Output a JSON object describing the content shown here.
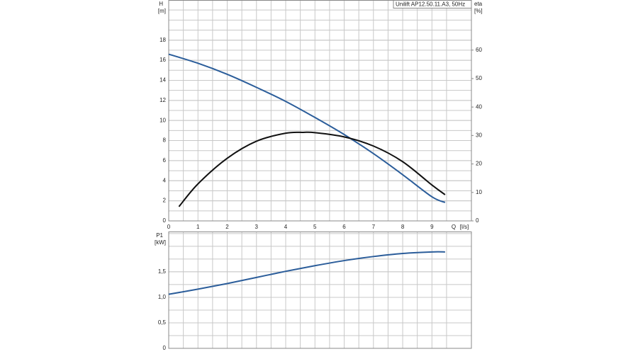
{
  "chart_data": [
    {
      "type": "line",
      "title": "Unilift AP12.50.11.A3, 50Hz",
      "ylabel": "H",
      "yunit": "[m]",
      "y2label": "eta",
      "y2unit": "[%]",
      "xlabel": "Q",
      "xunit": "[l/s]",
      "xlim": [
        0,
        10.35
      ],
      "xticks": [
        0,
        1,
        2,
        3,
        4,
        5,
        6,
        7,
        8,
        9
      ],
      "ylim": [
        0,
        22
      ],
      "yticks": [
        0,
        2,
        4,
        6,
        8,
        10,
        12,
        14,
        16,
        18
      ],
      "y2lim": [
        0,
        77.6
      ],
      "y2ticks": [
        0,
        10,
        20,
        30,
        40,
        50,
        60
      ],
      "grid": true,
      "series": [
        {
          "color": "#2b5d9a",
          "x": [
            0,
            1,
            2,
            3,
            4,
            5,
            6,
            7,
            8,
            9,
            9.45
          ],
          "values": [
            16.6,
            15.7,
            14.6,
            13.3,
            11.9,
            10.3,
            8.6,
            6.7,
            4.6,
            2.4,
            1.84
          ]
        },
        {
          "color": "#111111",
          "axis": "y2",
          "x": [
            0.35,
            1,
            2,
            3,
            4,
            4.6,
            5,
            6,
            7,
            8,
            9,
            9.45
          ],
          "values": [
            5,
            13,
            22,
            28,
            30.8,
            31.1,
            31,
            29.5,
            26.3,
            20.8,
            12.6,
            9.2
          ]
        }
      ]
    },
    {
      "type": "line",
      "ylabel": "P1",
      "yunit": "[kW]",
      "xlim": [
        0,
        10.35
      ],
      "ylim": [
        0,
        2.29
      ],
      "yticks": [
        0,
        {
          "value": 0.5,
          "label": "0,5"
        },
        {
          "value": 1.0,
          "label": "1,0"
        },
        {
          "value": 1.5,
          "label": "1,5"
        }
      ],
      "grid": true,
      "series": [
        {
          "color": "#2b5d9a",
          "x": [
            0,
            1,
            2,
            3,
            4,
            5,
            6,
            7,
            8,
            9,
            9.45
          ],
          "values": [
            1.06,
            1.16,
            1.27,
            1.39,
            1.51,
            1.62,
            1.72,
            1.8,
            1.86,
            1.89,
            1.89
          ]
        }
      ]
    }
  ]
}
